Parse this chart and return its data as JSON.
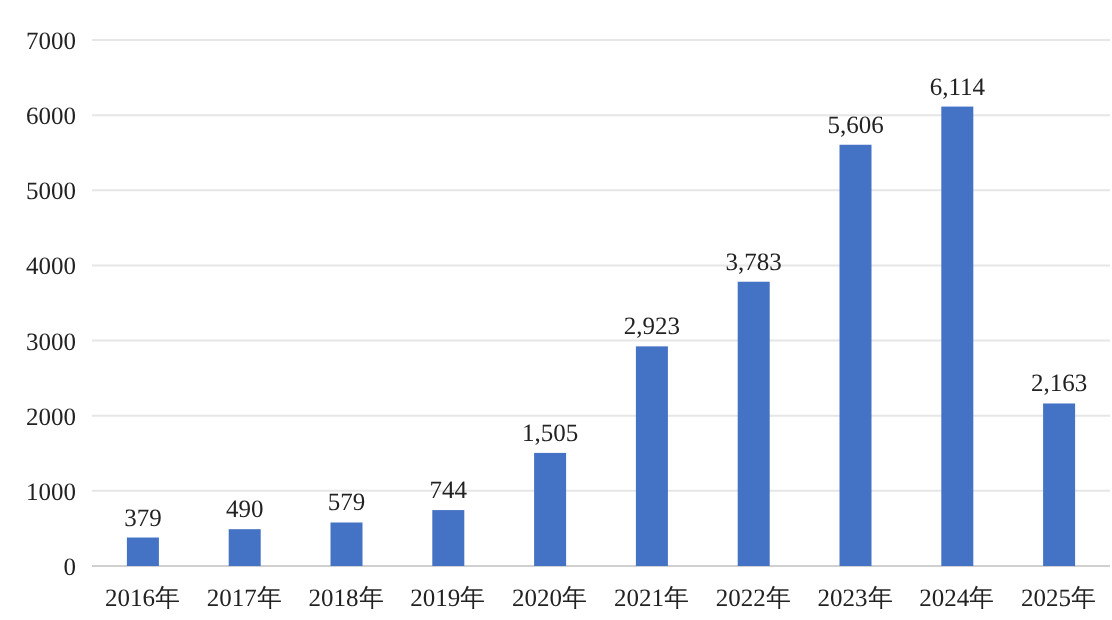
{
  "chart_data": {
    "type": "bar",
    "categories": [
      "2016年",
      "2017年",
      "2018年",
      "2019年",
      "2020年",
      "2021年",
      "2022年",
      "2023年",
      "2024年",
      "2025年"
    ],
    "values": [
      379,
      490,
      579,
      744,
      1505,
      2923,
      3783,
      5606,
      6114,
      2163
    ],
    "value_labels": [
      "379",
      "490",
      "579",
      "744",
      "1,505",
      "2,923",
      "3,783",
      "5,606",
      "6,114",
      "2,163"
    ],
    "color": "#4472c4",
    "ylim": [
      0,
      7000
    ],
    "yticks": [
      0,
      1000,
      2000,
      3000,
      4000,
      5000,
      6000,
      7000
    ],
    "grid": "y"
  }
}
